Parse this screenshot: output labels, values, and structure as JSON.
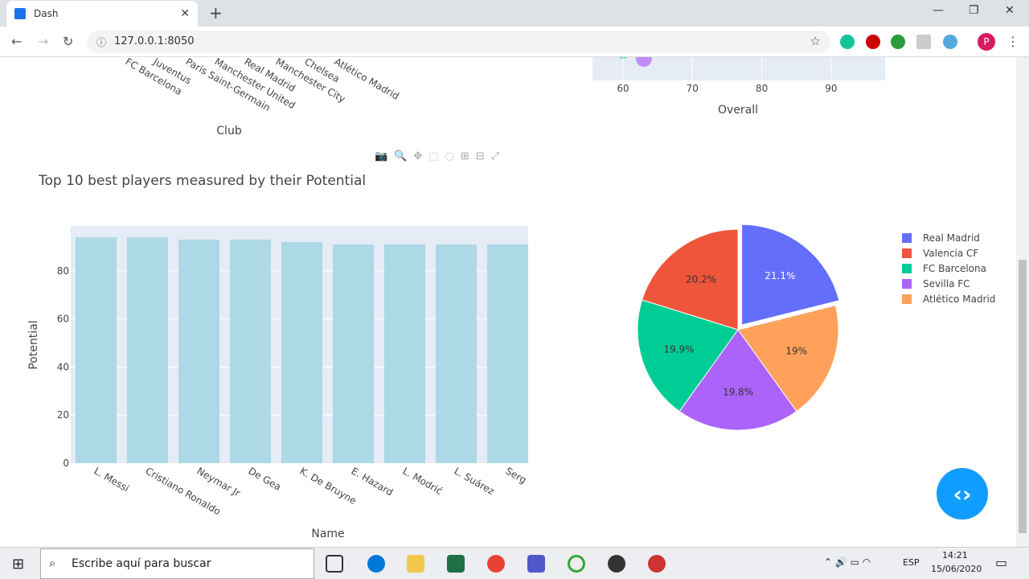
{
  "browser": {
    "tab_title": "Dash",
    "url": "127.0.0.1:8050"
  },
  "top_left_chart": {
    "categories": [
      "FC Barcelona",
      "Juventus",
      "Paris Saint-Germain",
      "Manchester United",
      "Real Madrid",
      "Manchester City",
      "Chelsea",
      "Atlético Madrid"
    ],
    "xlabel": "Club"
  },
  "top_right_chart": {
    "xticks": [
      "60",
      "70",
      "80",
      "90"
    ],
    "xlabel": "Overall"
  },
  "chart_data": [
    {
      "type": "bar",
      "title": "Top 10 best players measured by their Potential",
      "xlabel": "Name",
      "ylabel": "Potential",
      "categories": [
        "L. Messi",
        "Cristiano Ronaldo",
        "Neymar Jr",
        "De Gea",
        "K. De Bruyne",
        "E. Hazard",
        "L. Modrić",
        "L. Suárez",
        "Serg"
      ],
      "values": [
        94,
        94,
        93,
        93,
        92,
        91,
        91,
        91,
        91
      ],
      "yticks": [
        "0",
        "20",
        "40",
        "60",
        "80"
      ],
      "ylim": [
        0,
        98.7
      ],
      "color": "#add8e6",
      "grid": true
    },
    {
      "type": "pie",
      "labels": [
        "Real Madrid",
        "Atlético Madrid",
        "Sevilla FC",
        "FC Barcelona",
        "Valencia CF"
      ],
      "values": [
        21.1,
        19,
        19.8,
        19.9,
        20.2
      ],
      "text": [
        "21.1%",
        "19%",
        "19.8%",
        "19.9%",
        "20.2%"
      ],
      "colors": [
        "#636efa",
        "#ffa15a",
        "#ab63fa",
        "#00cc96",
        "#ef553b"
      ],
      "pull": [
        0.06,
        0,
        0,
        0,
        0
      ],
      "legend": [
        "Real Madrid",
        "Valencia CF",
        "FC Barcelona",
        "Sevilla FC",
        "Atlético Madrid"
      ],
      "legend_colors": [
        "#636efa",
        "#ef553b",
        "#00cc96",
        "#ab63fa",
        "#ffa15a"
      ],
      "legend_position": "right"
    }
  ],
  "taskbar": {
    "search_placeholder": "Escribe aquí para buscar",
    "lang": "ESP",
    "time": "14:21",
    "date": "15/06/2020"
  }
}
